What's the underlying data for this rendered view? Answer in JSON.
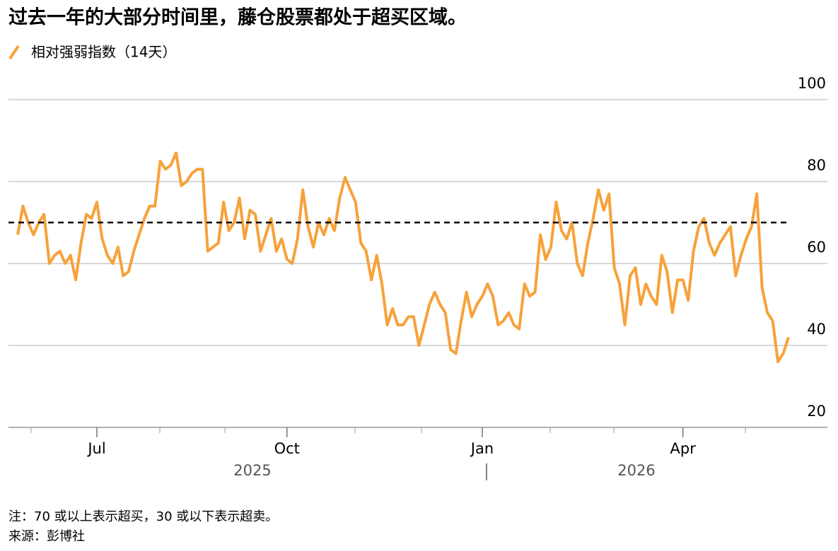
{
  "chart_data": {
    "type": "line",
    "title": "过去一年的大部分时间里，藤仓股票都处于超买区域。",
    "series": [
      {
        "name": "相对强弱指数（14天）",
        "color": "#f7a23b",
        "values": [
          67,
          74,
          70,
          67,
          70,
          72,
          60,
          62,
          63,
          60,
          62,
          56,
          65,
          72,
          71,
          75,
          66,
          62,
          60,
          64,
          57,
          58,
          63,
          67,
          71,
          74,
          74,
          85,
          83,
          84,
          87,
          79,
          80,
          82,
          83,
          83,
          63,
          64,
          65,
          75,
          68,
          70,
          76,
          66,
          73,
          72,
          63,
          67,
          71,
          63,
          66,
          61,
          60,
          66,
          78,
          69,
          64,
          70,
          67,
          71,
          68,
          76,
          81,
          78,
          75,
          65,
          63,
          56,
          62,
          55,
          45,
          49,
          45,
          45,
          47,
          47,
          40,
          45,
          50,
          53,
          50,
          48,
          39,
          38,
          46,
          53,
          47,
          50,
          52,
          55,
          52,
          45,
          46,
          48,
          45,
          44,
          55,
          52,
          53,
          67,
          61,
          64,
          75,
          68,
          66,
          70,
          60,
          57,
          65,
          71,
          78,
          73,
          77,
          59,
          55,
          45,
          57,
          59,
          50,
          55,
          52,
          50,
          62,
          58,
          48,
          56,
          56,
          51,
          63,
          69,
          71,
          65,
          62,
          65,
          67,
          69,
          57,
          62,
          66,
          69,
          77,
          54,
          48,
          46,
          36,
          38,
          42
        ]
      }
    ],
    "categories": [
      null,
      null,
      null,
      null,
      null,
      null,
      null,
      null,
      null,
      null,
      null,
      null,
      null,
      null,
      null,
      "Jul",
      null,
      null,
      null,
      null,
      null,
      null,
      null,
      null,
      null,
      null,
      null,
      null,
      null,
      null,
      null,
      null,
      null,
      null,
      null,
      null,
      null,
      null,
      null,
      null,
      null,
      null,
      null,
      null,
      null,
      null,
      null,
      null,
      null,
      null,
      null,
      "Oct",
      null,
      null,
      null,
      null,
      null,
      null,
      null,
      null,
      null,
      null,
      null,
      null,
      null,
      null,
      null,
      null,
      null,
      null,
      null,
      null,
      null,
      null,
      null,
      null,
      null,
      null,
      null,
      null,
      null,
      null,
      null,
      null,
      null,
      null,
      null,
      null,
      "Jan",
      null,
      null,
      null,
      null,
      null,
      null,
      null,
      null,
      null,
      null,
      null,
      null,
      null,
      null,
      null,
      null,
      null,
      null,
      null,
      null,
      null,
      null,
      null,
      null,
      null,
      null,
      null,
      null,
      null,
      null,
      null,
      null,
      null,
      null,
      null,
      null,
      null,
      "Apr",
      null,
      null,
      null,
      null,
      null,
      null,
      null,
      null,
      null,
      null,
      null,
      null,
      null,
      null,
      null,
      null,
      null,
      null,
      null,
      null
    ],
    "year_labels": [
      "2025",
      "2026"
    ],
    "threshold": 70,
    "ylim": [
      20,
      100
    ],
    "yticks": [
      20,
      40,
      60,
      80,
      100
    ],
    "grid": true,
    "note": "注：70 或以上表示超买，30 或以下表示超卖。",
    "source": "来源：彭博社"
  }
}
